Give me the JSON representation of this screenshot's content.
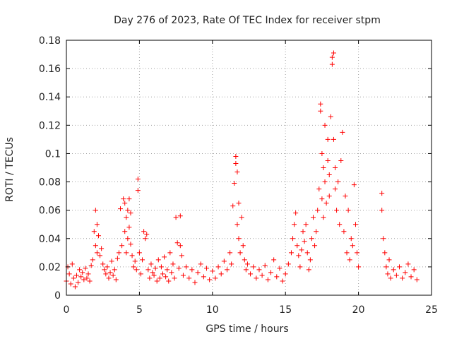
{
  "chart_data": {
    "type": "scatter",
    "title": "Day 276 of 2023, Rate Of TEC Index for receiver stpm",
    "xlabel": "GPS time / hours",
    "ylabel": "ROTI / TECUs",
    "xlim": [
      0,
      25
    ],
    "ylim": [
      0,
      0.18
    ],
    "x_ticks": [
      0,
      5,
      10,
      15,
      20,
      25
    ],
    "x_tick_labels": [
      "0",
      "5",
      "10",
      "15",
      "20",
      "25"
    ],
    "y_ticks": [
      0,
      0.02,
      0.04,
      0.06,
      0.08,
      0.1,
      0.12,
      0.14,
      0.16,
      0.18
    ],
    "y_tick_labels": [
      "0",
      "0.02",
      "0.04",
      "0.06",
      "0.08",
      "0.1",
      "0.12",
      "0.14",
      "0.16",
      "0.18"
    ],
    "grid": true,
    "marker": "+",
    "series_color": "#ff0000",
    "points": [
      [
        0.0,
        0.01
      ],
      [
        0.1,
        0.02
      ],
      [
        0.2,
        0.015
      ],
      [
        0.3,
        0.008
      ],
      [
        0.4,
        0.022
      ],
      [
        0.5,
        0.012
      ],
      [
        0.6,
        0.006
      ],
      [
        0.7,
        0.014
      ],
      [
        0.8,
        0.009
      ],
      [
        0.9,
        0.018
      ],
      [
        1.0,
        0.013
      ],
      [
        1.1,
        0.016
      ],
      [
        1.2,
        0.011
      ],
      [
        1.3,
        0.019
      ],
      [
        1.4,
        0.012
      ],
      [
        1.5,
        0.015
      ],
      [
        1.6,
        0.01
      ],
      [
        1.7,
        0.021
      ],
      [
        1.8,
        0.025
      ],
      [
        1.9,
        0.045
      ],
      [
        2.0,
        0.06
      ],
      [
        2.0,
        0.035
      ],
      [
        2.1,
        0.05
      ],
      [
        2.1,
        0.03
      ],
      [
        2.2,
        0.042
      ],
      [
        2.3,
        0.028
      ],
      [
        2.4,
        0.033
      ],
      [
        2.5,
        0.022
      ],
      [
        2.6,
        0.018
      ],
      [
        2.7,
        0.015
      ],
      [
        2.8,
        0.02
      ],
      [
        2.9,
        0.012
      ],
      [
        3.0,
        0.016
      ],
      [
        3.1,
        0.024
      ],
      [
        3.2,
        0.014
      ],
      [
        3.3,
        0.018
      ],
      [
        3.4,
        0.011
      ],
      [
        3.5,
        0.026
      ],
      [
        3.6,
        0.03
      ],
      [
        3.7,
        0.061
      ],
      [
        3.8,
        0.035
      ],
      [
        3.9,
        0.068
      ],
      [
        4.0,
        0.045
      ],
      [
        4.0,
        0.065
      ],
      [
        4.1,
        0.055
      ],
      [
        4.1,
        0.03
      ],
      [
        4.2,
        0.06
      ],
      [
        4.2,
        0.04
      ],
      [
        4.3,
        0.068
      ],
      [
        4.3,
        0.048
      ],
      [
        4.4,
        0.036
      ],
      [
        4.4,
        0.058
      ],
      [
        4.5,
        0.028
      ],
      [
        4.6,
        0.02
      ],
      [
        4.7,
        0.024
      ],
      [
        4.8,
        0.018
      ],
      [
        4.9,
        0.074
      ],
      [
        4.9,
        0.082
      ],
      [
        5.0,
        0.03
      ],
      [
        5.1,
        0.015
      ],
      [
        5.2,
        0.025
      ],
      [
        5.3,
        0.045
      ],
      [
        5.4,
        0.04
      ],
      [
        5.5,
        0.043
      ],
      [
        5.6,
        0.018
      ],
      [
        5.7,
        0.012
      ],
      [
        5.8,
        0.022
      ],
      [
        5.9,
        0.016
      ],
      [
        6.0,
        0.014
      ],
      [
        6.1,
        0.019
      ],
      [
        6.2,
        0.01
      ],
      [
        6.3,
        0.025
      ],
      [
        6.4,
        0.012
      ],
      [
        6.5,
        0.02
      ],
      [
        6.6,
        0.015
      ],
      [
        6.7,
        0.027
      ],
      [
        6.8,
        0.013
      ],
      [
        6.9,
        0.018
      ],
      [
        7.0,
        0.01
      ],
      [
        7.1,
        0.03
      ],
      [
        7.2,
        0.016
      ],
      [
        7.3,
        0.022
      ],
      [
        7.4,
        0.012
      ],
      [
        7.5,
        0.055
      ],
      [
        7.6,
        0.037
      ],
      [
        7.7,
        0.019
      ],
      [
        7.8,
        0.056
      ],
      [
        7.8,
        0.035
      ],
      [
        7.9,
        0.028
      ],
      [
        8.0,
        0.014
      ],
      [
        8.2,
        0.02
      ],
      [
        8.4,
        0.012
      ],
      [
        8.6,
        0.018
      ],
      [
        8.8,
        0.009
      ],
      [
        9.0,
        0.016
      ],
      [
        9.2,
        0.022
      ],
      [
        9.4,
        0.013
      ],
      [
        9.6,
        0.019
      ],
      [
        9.8,
        0.011
      ],
      [
        10.0,
        0.017
      ],
      [
        10.2,
        0.012
      ],
      [
        10.4,
        0.02
      ],
      [
        10.6,
        0.015
      ],
      [
        10.8,
        0.024
      ],
      [
        11.0,
        0.018
      ],
      [
        11.2,
        0.03
      ],
      [
        11.3,
        0.022
      ],
      [
        11.4,
        0.063
      ],
      [
        11.5,
        0.079
      ],
      [
        11.6,
        0.093
      ],
      [
        11.6,
        0.098
      ],
      [
        11.7,
        0.087
      ],
      [
        11.7,
        0.05
      ],
      [
        11.8,
        0.04
      ],
      [
        11.8,
        0.065
      ],
      [
        11.9,
        0.03
      ],
      [
        12.0,
        0.055
      ],
      [
        12.1,
        0.035
      ],
      [
        12.2,
        0.025
      ],
      [
        12.3,
        0.018
      ],
      [
        12.4,
        0.022
      ],
      [
        12.6,
        0.015
      ],
      [
        12.8,
        0.02
      ],
      [
        13.0,
        0.012
      ],
      [
        13.2,
        0.018
      ],
      [
        13.4,
        0.014
      ],
      [
        13.6,
        0.021
      ],
      [
        13.8,
        0.011
      ],
      [
        14.0,
        0.016
      ],
      [
        14.2,
        0.025
      ],
      [
        14.4,
        0.013
      ],
      [
        14.6,
        0.019
      ],
      [
        14.8,
        0.01
      ],
      [
        15.0,
        0.015
      ],
      [
        15.2,
        0.022
      ],
      [
        15.4,
        0.03
      ],
      [
        15.5,
        0.04
      ],
      [
        15.6,
        0.05
      ],
      [
        15.7,
        0.058
      ],
      [
        15.8,
        0.035
      ],
      [
        15.9,
        0.028
      ],
      [
        16.0,
        0.02
      ],
      [
        16.1,
        0.032
      ],
      [
        16.2,
        0.045
      ],
      [
        16.3,
        0.038
      ],
      [
        16.4,
        0.05
      ],
      [
        16.5,
        0.03
      ],
      [
        16.6,
        0.018
      ],
      [
        16.7,
        0.025
      ],
      [
        16.8,
        0.04
      ],
      [
        16.9,
        0.055
      ],
      [
        17.0,
        0.035
      ],
      [
        17.1,
        0.045
      ],
      [
        17.2,
        0.06
      ],
      [
        17.3,
        0.075
      ],
      [
        17.4,
        0.135
      ],
      [
        17.4,
        0.13
      ],
      [
        17.5,
        0.1
      ],
      [
        17.5,
        0.068
      ],
      [
        17.6,
        0.09
      ],
      [
        17.6,
        0.055
      ],
      [
        17.7,
        0.12
      ],
      [
        17.7,
        0.08
      ],
      [
        17.8,
        0.065
      ],
      [
        17.9,
        0.11
      ],
      [
        17.9,
        0.095
      ],
      [
        18.0,
        0.085
      ],
      [
        18.0,
        0.07
      ],
      [
        18.1,
        0.126
      ],
      [
        18.2,
        0.168
      ],
      [
        18.2,
        0.163
      ],
      [
        18.3,
        0.171
      ],
      [
        18.3,
        0.11
      ],
      [
        18.4,
        0.09
      ],
      [
        18.4,
        0.075
      ],
      [
        18.5,
        0.06
      ],
      [
        18.6,
        0.08
      ],
      [
        18.7,
        0.05
      ],
      [
        18.8,
        0.095
      ],
      [
        18.9,
        0.115
      ],
      [
        19.0,
        0.045
      ],
      [
        19.1,
        0.07
      ],
      [
        19.2,
        0.03
      ],
      [
        19.3,
        0.06
      ],
      [
        19.4,
        0.025
      ],
      [
        19.5,
        0.04
      ],
      [
        19.6,
        0.035
      ],
      [
        19.7,
        0.078
      ],
      [
        19.8,
        0.05
      ],
      [
        19.9,
        0.03
      ],
      [
        20.0,
        0.02
      ],
      [
        21.6,
        0.072
      ],
      [
        21.6,
        0.06
      ],
      [
        21.7,
        0.04
      ],
      [
        21.8,
        0.03
      ],
      [
        21.9,
        0.02
      ],
      [
        22.0,
        0.015
      ],
      [
        22.1,
        0.025
      ],
      [
        22.2,
        0.012
      ],
      [
        22.4,
        0.018
      ],
      [
        22.6,
        0.014
      ],
      [
        22.8,
        0.02
      ],
      [
        23.0,
        0.012
      ],
      [
        23.2,
        0.016
      ],
      [
        23.4,
        0.022
      ],
      [
        23.6,
        0.013
      ],
      [
        23.8,
        0.018
      ],
      [
        24.0,
        0.011
      ]
    ]
  }
}
